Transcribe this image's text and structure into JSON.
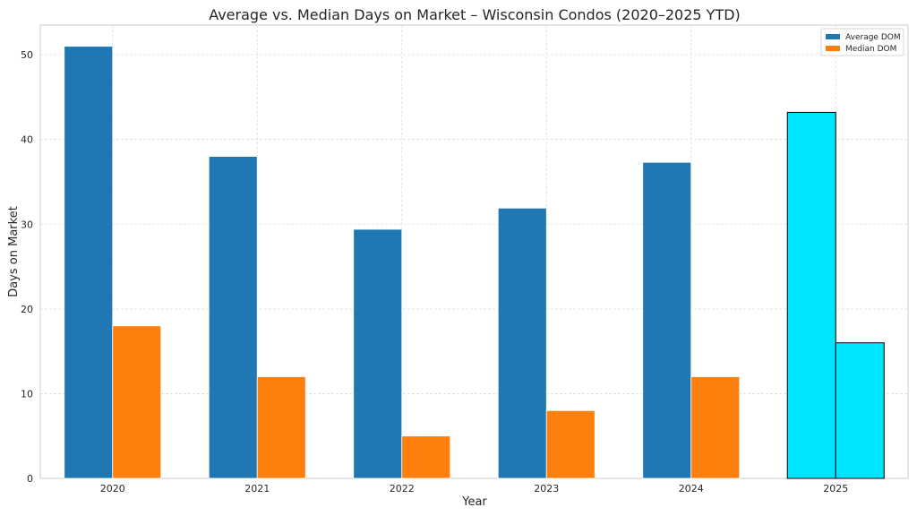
{
  "chart_data": {
    "type": "bar",
    "title": "Average vs. Median Days on Market – Wisconsin Condos (2020–2025 YTD)",
    "xlabel": "Year",
    "ylabel": "Days on Market",
    "categories": [
      "2020",
      "2021",
      "2022",
      "2023",
      "2024",
      "2025"
    ],
    "series": [
      {
        "name": "Average DOM",
        "color": "#1f77b4",
        "values": [
          51,
          38,
          29.4,
          31.9,
          37.3,
          43.2
        ]
      },
      {
        "name": "Median DOM",
        "color": "#ff7f0e",
        "values": [
          18,
          12,
          5,
          8,
          12,
          16
        ]
      }
    ],
    "highlight": {
      "category": "2025",
      "color": "#00e5ff",
      "edge_color": "#000000"
    },
    "ylim": [
      0,
      53.5
    ],
    "yticks": [
      0,
      10,
      20,
      30,
      40,
      50
    ],
    "grid": true,
    "legend_position": "top-right"
  }
}
